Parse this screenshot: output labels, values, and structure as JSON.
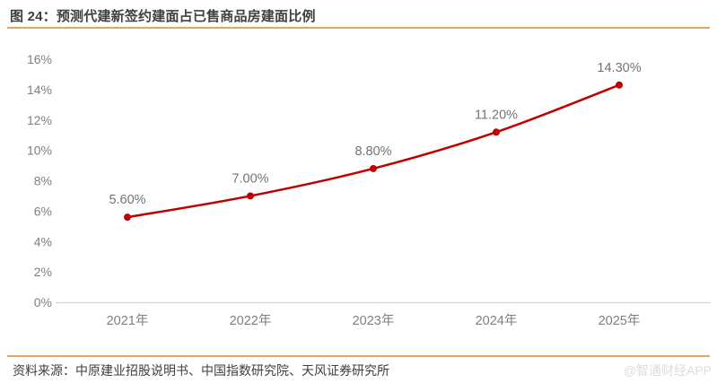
{
  "title": "图 24：预测代建新签约建面占已售商品房建面比例",
  "footer": {
    "source": "资料来源：中原建业招股说明书、中国指数研究院、天风证券研究所"
  },
  "watermark": "@智通财经APP",
  "colors": {
    "accent_orange": "#e8a55f",
    "series_red": "#c00000",
    "axis_line_gray": "#d9d9d9",
    "tick_label_gray": "#7f7f7f",
    "data_label_gray": "#737373",
    "title_gray": "#3f3f3f",
    "watermark_gray": "#dcdcdc"
  },
  "chart_data": {
    "type": "line",
    "title": "预测代建新签约建面占已售商品房建面比例",
    "categories": [
      "2021年",
      "2022年",
      "2023年",
      "2024年",
      "2025年"
    ],
    "values": [
      5.6,
      7.0,
      8.8,
      11.2,
      14.3
    ],
    "data_labels": [
      "5.60%",
      "7.00%",
      "8.80%",
      "11.20%",
      "14.30%"
    ],
    "xlabel": "",
    "ylabel": "",
    "ylim": [
      0,
      16
    ],
    "ytick_step": 2,
    "ytick_labels": [
      "0%",
      "2%",
      "4%",
      "6%",
      "8%",
      "10%",
      "12%",
      "14%",
      "16%"
    ],
    "grid": false,
    "legend": "none",
    "smooth": true,
    "marker": "circle"
  }
}
